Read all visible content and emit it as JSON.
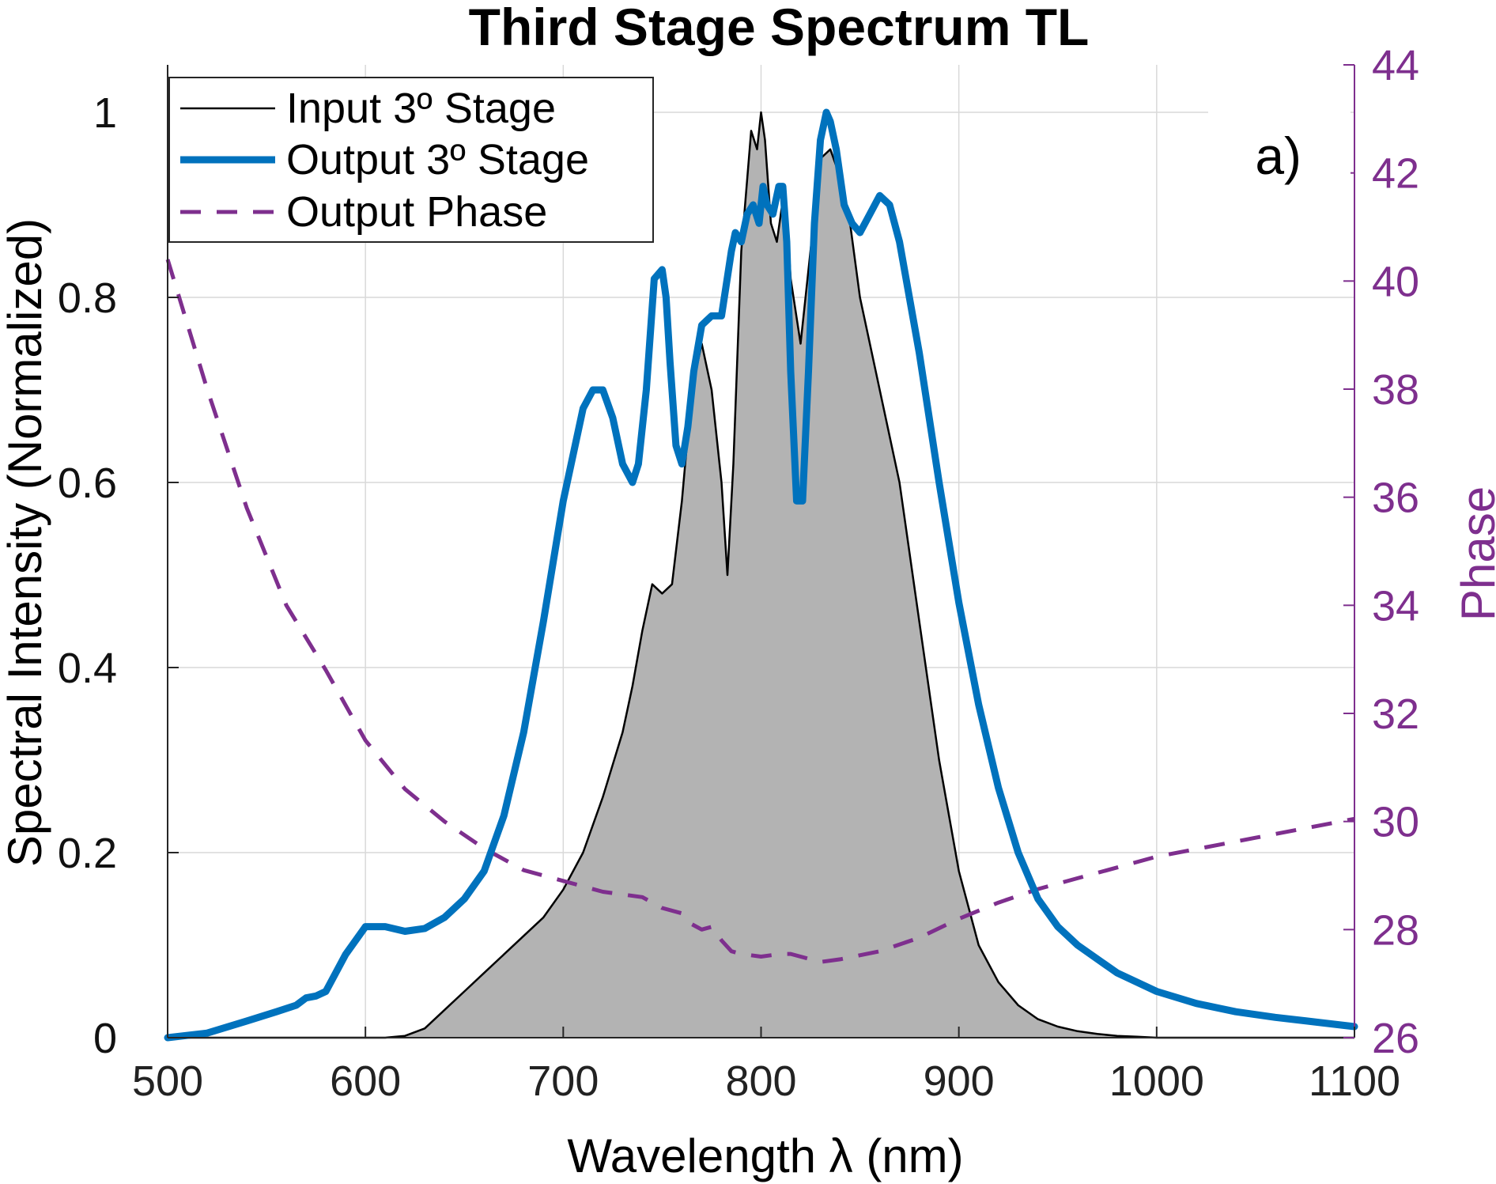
{
  "chart_data": {
    "type": "line",
    "title": "Third Stage Spectrum TL",
    "xlabel": "Wavelength λ (nm)",
    "ylabel": "Spectral Intensity (Normalized)",
    "y2label": "Phase",
    "panel_label": "a)",
    "xlim": [
      500,
      1100
    ],
    "ylim": [
      0,
      1.05
    ],
    "y2lim": [
      26,
      44
    ],
    "xticks": [
      500,
      600,
      700,
      800,
      900,
      1000,
      1100
    ],
    "xtick_labels": [
      "500",
      "600",
      "700",
      "800",
      "900",
      "1000",
      "1100"
    ],
    "yticks": [
      0,
      0.2,
      0.4,
      0.6,
      0.8,
      1
    ],
    "ytick_labels": [
      "0",
      "0.2",
      "0.4",
      "0.6",
      "0.8",
      "1"
    ],
    "y2ticks": [
      26,
      28,
      30,
      32,
      34,
      36,
      38,
      40,
      42,
      44
    ],
    "y2tick_labels": [
      "26",
      "28",
      "30",
      "32",
      "34",
      "36",
      "38",
      "40",
      "42",
      "44"
    ],
    "grid": true,
    "legend_position": "top-left",
    "series": [
      {
        "name": "Input 3º Stage",
        "axis": "left",
        "style": "solid-thin-filled",
        "color": "#000000",
        "fill": "#b3b3b3",
        "x": [
          500,
          610,
          620,
          630,
          640,
          650,
          660,
          670,
          680,
          690,
          700,
          710,
          720,
          730,
          735,
          740,
          745,
          750,
          755,
          760,
          765,
          770,
          775,
          780,
          783,
          786,
          790,
          795,
          798,
          800,
          802,
          805,
          808,
          812,
          815,
          820,
          825,
          830,
          835,
          840,
          845,
          850,
          860,
          870,
          880,
          890,
          900,
          910,
          920,
          930,
          940,
          950,
          960,
          970,
          980,
          990,
          1000,
          1100
        ],
        "values": [
          0,
          0,
          0.002,
          0.01,
          0.03,
          0.05,
          0.07,
          0.09,
          0.11,
          0.13,
          0.16,
          0.2,
          0.26,
          0.33,
          0.38,
          0.44,
          0.49,
          0.48,
          0.49,
          0.58,
          0.7,
          0.75,
          0.7,
          0.6,
          0.5,
          0.62,
          0.85,
          0.98,
          0.96,
          1.0,
          0.97,
          0.88,
          0.86,
          0.92,
          0.82,
          0.75,
          0.85,
          0.95,
          0.96,
          0.93,
          0.88,
          0.8,
          0.7,
          0.6,
          0.45,
          0.3,
          0.18,
          0.1,
          0.06,
          0.035,
          0.02,
          0.012,
          0.007,
          0.004,
          0.002,
          0.001,
          0,
          0
        ]
      },
      {
        "name": "Output 3º Stage",
        "axis": "left",
        "style": "solid-thick",
        "color": "#0072BD",
        "x": [
          500,
          520,
          540,
          555,
          565,
          570,
          575,
          580,
          590,
          600,
          610,
          620,
          630,
          640,
          650,
          660,
          670,
          680,
          690,
          700,
          710,
          715,
          720,
          725,
          730,
          735,
          738,
          742,
          746,
          750,
          752,
          754,
          757,
          760,
          763,
          766,
          770,
          775,
          780,
          785,
          787,
          790,
          793,
          796,
          799,
          801,
          803,
          806,
          809,
          811,
          813,
          815,
          818,
          821,
          824,
          827,
          830,
          833,
          835,
          838,
          842,
          846,
          850,
          855,
          860,
          865,
          870,
          880,
          890,
          900,
          910,
          920,
          930,
          940,
          950,
          960,
          980,
          1000,
          1020,
          1040,
          1060,
          1080,
          1100
        ],
        "values": [
          0,
          0.005,
          0.018,
          0.028,
          0.035,
          0.043,
          0.045,
          0.05,
          0.09,
          0.12,
          0.12,
          0.115,
          0.118,
          0.13,
          0.15,
          0.18,
          0.24,
          0.33,
          0.45,
          0.58,
          0.68,
          0.7,
          0.7,
          0.67,
          0.62,
          0.6,
          0.62,
          0.7,
          0.82,
          0.83,
          0.8,
          0.73,
          0.64,
          0.62,
          0.66,
          0.72,
          0.77,
          0.78,
          0.78,
          0.85,
          0.87,
          0.86,
          0.89,
          0.9,
          0.88,
          0.92,
          0.9,
          0.89,
          0.92,
          0.92,
          0.86,
          0.72,
          0.58,
          0.58,
          0.72,
          0.88,
          0.97,
          1.0,
          0.99,
          0.96,
          0.9,
          0.88,
          0.87,
          0.89,
          0.91,
          0.9,
          0.86,
          0.74,
          0.6,
          0.47,
          0.36,
          0.27,
          0.2,
          0.15,
          0.12,
          0.1,
          0.07,
          0.05,
          0.037,
          0.028,
          0.022,
          0.017,
          0.012
        ]
      },
      {
        "name": "Output Phase",
        "axis": "right",
        "style": "dashed",
        "color": "#7E2F8E",
        "x": [
          500,
          520,
          540,
          560,
          580,
          600,
          620,
          640,
          660,
          680,
          700,
          720,
          740,
          750,
          760,
          765,
          770,
          775,
          780,
          785,
          790,
          800,
          810,
          815,
          820,
          830,
          840,
          860,
          880,
          900,
          920,
          940,
          960,
          980,
          1000,
          1050,
          1100
        ],
        "values": [
          40.4,
          38.0,
          35.8,
          34.0,
          32.8,
          31.5,
          30.6,
          30.0,
          29.5,
          29.1,
          28.9,
          28.7,
          28.6,
          28.4,
          28.3,
          28.1,
          28.0,
          28.05,
          27.8,
          27.6,
          27.55,
          27.5,
          27.55,
          27.55,
          27.5,
          27.4,
          27.45,
          27.6,
          27.85,
          28.2,
          28.5,
          28.75,
          28.95,
          29.15,
          29.35,
          29.7,
          30.05
        ]
      }
    ]
  }
}
